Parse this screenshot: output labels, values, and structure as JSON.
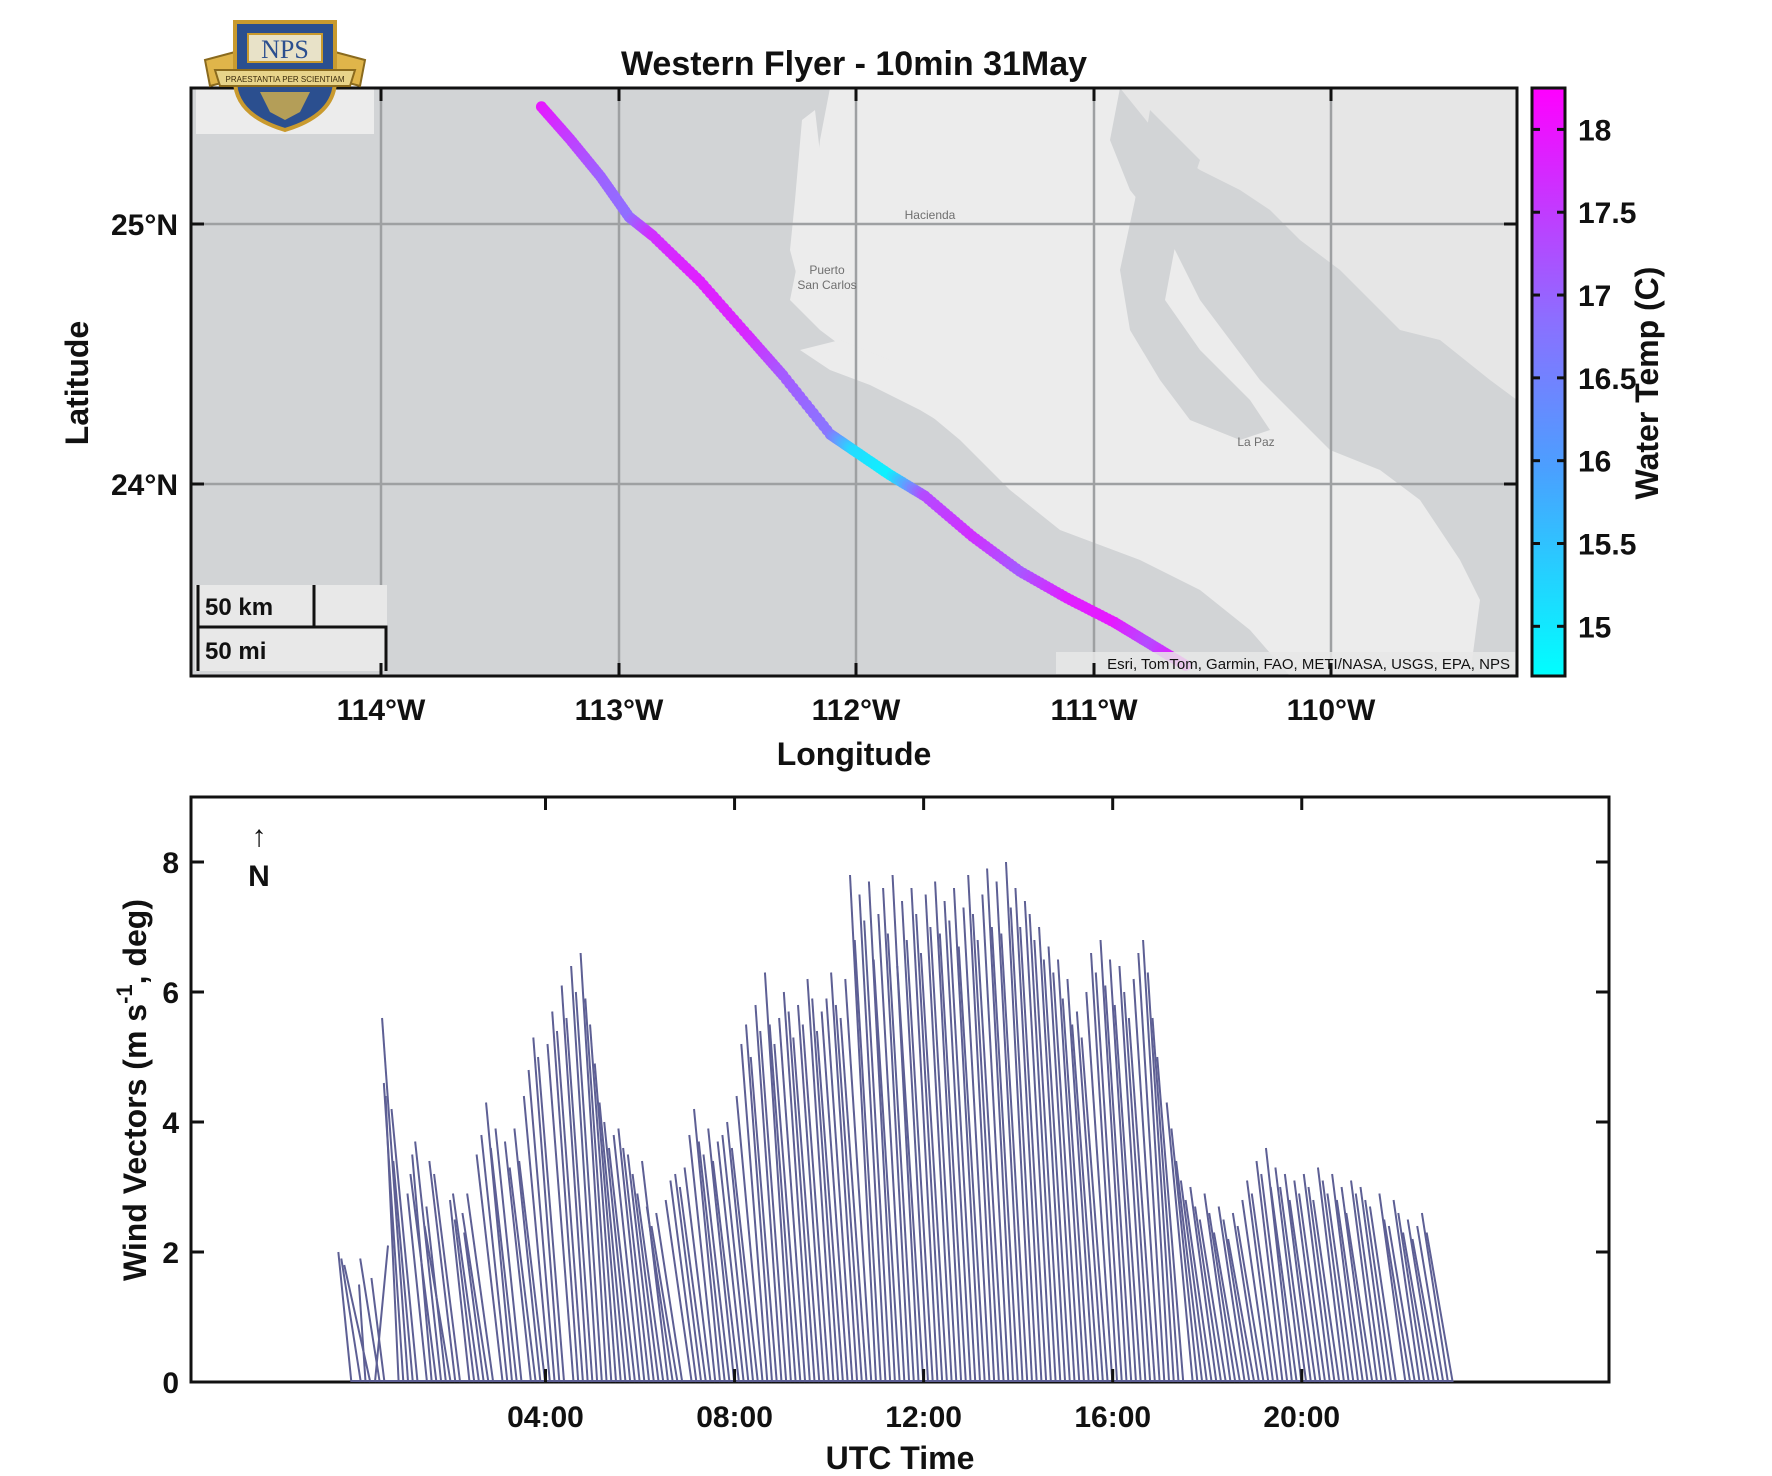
{
  "chart_data": [
    {
      "type": "scatter",
      "title": "Western Flyer - 10min 31May",
      "xlabel": "Longitude",
      "ylabel": "Latitude",
      "xlim": [
        -114.85,
        -109.25
      ],
      "ylim": [
        23.33,
        25.52
      ],
      "xticks": [
        {
          "value": -114,
          "label": "114°W"
        },
        {
          "value": -113,
          "label": "113°W"
        },
        {
          "value": -112,
          "label": "112°W"
        },
        {
          "value": -111,
          "label": "111°W"
        },
        {
          "value": -110,
          "label": "110°W"
        }
      ],
      "yticks": [
        {
          "value": 25,
          "label": "25°N"
        },
        {
          "value": 24,
          "label": "24°N"
        }
      ],
      "grid": true,
      "basemap": "light gray canvas",
      "basemap_attribution": "Esri, TomTom, Garmin, FAO, METI/NASA, USGS, EPA, NPS",
      "place_labels": [
        {
          "text": "Hacienda",
          "lon": -112.13,
          "lat": 25.03
        },
        {
          "text": "Puerto",
          "lon": -112.07,
          "lat": 24.77
        },
        {
          "text": "San Carlos",
          "lon": -112.07,
          "lat": 24.72
        },
        {
          "text": "La Paz",
          "lon": -110.31,
          "lat": 24.15
        }
      ],
      "scalebar": {
        "km_label": "50 km",
        "mi_label": "50 mi"
      },
      "logo": {
        "text": "NPS",
        "motto": "PRAESTANTIA PER SCIENTIAM"
      },
      "colorbar": {
        "label": "Water Temp (C)",
        "range": [
          14.7,
          18.25
        ],
        "ticks": [
          "18",
          "17.5",
          "17",
          "16.5",
          "16",
          "15.5",
          "15"
        ],
        "tick_values": [
          18,
          17.5,
          17,
          16.5,
          16,
          15.5,
          15
        ],
        "colormap": [
          "#00ffff",
          "#ff00ff"
        ]
      },
      "track": [
        {
          "lon": -113.37,
          "lat": 25.45,
          "temp": 17.9
        },
        {
          "lon": -113.25,
          "lat": 25.33,
          "temp": 17.4
        },
        {
          "lon": -113.12,
          "lat": 25.19,
          "temp": 16.9
        },
        {
          "lon": -113.0,
          "lat": 25.04,
          "temp": 16.7
        },
        {
          "lon": -112.9,
          "lat": 24.97,
          "temp": 17.6
        },
        {
          "lon": -112.7,
          "lat": 24.8,
          "temp": 17.8
        },
        {
          "lon": -112.5,
          "lat": 24.6,
          "temp": 17.7
        },
        {
          "lon": -112.35,
          "lat": 24.45,
          "temp": 17.0
        },
        {
          "lon": -112.15,
          "lat": 24.23,
          "temp": 16.6
        },
        {
          "lon": -112.05,
          "lat": 24.17,
          "temp": 15.2
        },
        {
          "lon": -111.9,
          "lat": 24.08,
          "temp": 14.9
        },
        {
          "lon": -111.75,
          "lat": 24.0,
          "temp": 17.2
        },
        {
          "lon": -111.55,
          "lat": 23.85,
          "temp": 17.6
        },
        {
          "lon": -111.35,
          "lat": 23.72,
          "temp": 17.0
        },
        {
          "lon": -111.15,
          "lat": 23.62,
          "temp": 17.8
        },
        {
          "lon": -110.95,
          "lat": 23.53,
          "temp": 17.9
        },
        {
          "lon": -110.8,
          "lat": 23.45,
          "temp": 17.2
        },
        {
          "lon": -110.65,
          "lat": 23.37,
          "temp": 18.1
        }
      ]
    },
    {
      "type": "line",
      "subtype": "wind vector stick plot",
      "xlabel": "UTC Time",
      "ylabel_parts": [
        "Wind Vectors (m s",
        "-1",
        ", deg)"
      ],
      "xlim_hours": [
        0,
        30
      ],
      "ylim": [
        0,
        9
      ],
      "xticks": [
        "04:00",
        "08:00",
        "12:00",
        "16:00",
        "20:00"
      ],
      "xtick_hours": [
        7.5,
        11.5,
        15.5,
        19.5,
        23.5
      ],
      "yticks": [
        "0",
        "2",
        "4",
        "6",
        "8"
      ],
      "ytick_values": [
        0,
        2,
        4,
        6,
        8
      ],
      "north_arrow": {
        "arrow": "↑",
        "label": "N"
      },
      "color": "#5d5f94",
      "vectors": [
        [
          2.8,
          2.0,
          -0.2
        ],
        [
          3.0,
          1.9,
          -0.3
        ],
        [
          3.1,
          1.5,
          -0.1
        ],
        [
          3.2,
          1.8,
          -0.4
        ],
        [
          3.3,
          2.1,
          0.2
        ],
        [
          3.4,
          1.9,
          -0.3
        ],
        [
          3.5,
          1.6,
          -0.2
        ],
        [
          3.8,
          4.4,
          -0.2
        ],
        [
          3.9,
          4.6,
          -0.3
        ],
        [
          4.0,
          5.6,
          -0.4
        ],
        [
          4.1,
          3.4,
          -0.3
        ],
        [
          4.2,
          4.2,
          -0.4
        ],
        [
          4.4,
          2.9,
          -0.3
        ],
        [
          4.5,
          3.5,
          -0.3
        ],
        [
          4.6,
          3.2,
          -0.4
        ],
        [
          4.7,
          3.7,
          -0.4
        ],
        [
          4.8,
          2.7,
          -0.3
        ],
        [
          4.9,
          2.4,
          -0.4
        ],
        [
          5.0,
          3.4,
          -0.4
        ],
        [
          5.1,
          3.2,
          -0.4
        ],
        [
          5.3,
          2.8,
          -0.3
        ],
        [
          5.4,
          2.5,
          -0.3
        ],
        [
          5.5,
          2.9,
          -0.4
        ],
        [
          5.6,
          2.3,
          -0.3
        ],
        [
          5.7,
          2.6,
          -0.4
        ],
        [
          5.8,
          2.9,
          -0.4
        ],
        [
          6.0,
          3.5,
          -0.4
        ],
        [
          6.1,
          3.8,
          -0.4
        ],
        [
          6.2,
          4.3,
          -0.4
        ],
        [
          6.3,
          3.6,
          -0.4
        ],
        [
          6.4,
          3.9,
          -0.4
        ],
        [
          6.6,
          3.7,
          -0.4
        ],
        [
          6.7,
          3.3,
          -0.4
        ],
        [
          6.8,
          3.9,
          -0.4
        ],
        [
          6.9,
          3.4,
          -0.4
        ],
        [
          7.0,
          4.4,
          -0.4
        ],
        [
          7.1,
          4.8,
          -0.4
        ],
        [
          7.2,
          5.3,
          -0.4
        ],
        [
          7.3,
          5.0,
          -0.4
        ],
        [
          7.5,
          5.2,
          -0.4
        ],
        [
          7.6,
          5.7,
          -0.4
        ],
        [
          7.7,
          5.4,
          -0.4
        ],
        [
          7.8,
          6.1,
          -0.4
        ],
        [
          7.9,
          5.6,
          -0.4
        ],
        [
          8.0,
          6.4,
          -0.4
        ],
        [
          8.1,
          6.0,
          -0.4
        ],
        [
          8.2,
          6.6,
          -0.4
        ],
        [
          8.3,
          5.9,
          -0.4
        ],
        [
          8.4,
          5.5,
          -0.4
        ],
        [
          8.5,
          4.9,
          -0.4
        ],
        [
          8.6,
          4.3,
          -0.4
        ],
        [
          8.7,
          4.0,
          -0.4
        ],
        [
          8.8,
          3.6,
          -0.4
        ],
        [
          8.9,
          3.8,
          -0.4
        ],
        [
          9.0,
          3.9,
          -0.4
        ],
        [
          9.1,
          3.6,
          -0.4
        ],
        [
          9.2,
          3.5,
          -0.4
        ],
        [
          9.3,
          3.2,
          -0.4
        ],
        [
          9.4,
          2.9,
          -0.4
        ],
        [
          9.5,
          3.4,
          -0.4
        ],
        [
          9.6,
          2.7,
          -0.4
        ],
        [
          9.7,
          2.4,
          -0.4
        ],
        [
          9.8,
          2.6,
          -0.4
        ],
        [
          10.0,
          2.8,
          -0.4
        ],
        [
          10.1,
          3.1,
          -0.4
        ],
        [
          10.2,
          3.2,
          -0.4
        ],
        [
          10.3,
          3.0,
          -0.4
        ],
        [
          10.4,
          3.3,
          -0.4
        ],
        [
          10.5,
          3.8,
          -0.4
        ],
        [
          10.6,
          4.2,
          -0.4
        ],
        [
          10.7,
          3.7,
          -0.4
        ],
        [
          10.8,
          3.5,
          -0.4
        ],
        [
          10.9,
          3.9,
          -0.4
        ],
        [
          11.0,
          3.4,
          -0.4
        ],
        [
          11.1,
          3.7,
          -0.4
        ],
        [
          11.2,
          3.8,
          -0.4
        ],
        [
          11.3,
          4.0,
          -0.4
        ],
        [
          11.4,
          3.6,
          -0.4
        ],
        [
          11.5,
          4.4,
          -0.4
        ],
        [
          11.6,
          5.2,
          -0.4
        ],
        [
          11.7,
          5.5,
          -0.4
        ],
        [
          11.8,
          5.0,
          -0.4
        ],
        [
          11.9,
          5.8,
          -0.4
        ],
        [
          12.0,
          5.4,
          -0.4
        ],
        [
          12.1,
          6.3,
          -0.4
        ],
        [
          12.2,
          5.5,
          -0.4
        ],
        [
          12.3,
          5.2,
          -0.4
        ],
        [
          12.4,
          5.6,
          -0.4
        ],
        [
          12.5,
          6.0,
          -0.4
        ],
        [
          12.6,
          5.7,
          -0.4
        ],
        [
          12.7,
          5.3,
          -0.4
        ],
        [
          12.8,
          5.8,
          -0.4
        ],
        [
          12.9,
          5.5,
          -0.4
        ],
        [
          13.0,
          6.2,
          -0.4
        ],
        [
          13.1,
          5.9,
          -0.4
        ],
        [
          13.2,
          5.4,
          -0.4
        ],
        [
          13.3,
          5.7,
          -0.4
        ],
        [
          13.4,
          5.9,
          -0.4
        ],
        [
          13.5,
          6.3,
          -0.4
        ],
        [
          13.6,
          5.8,
          -0.4
        ],
        [
          13.7,
          5.6,
          -0.4
        ],
        [
          13.8,
          6.2,
          -0.4
        ],
        [
          13.9,
          7.8,
          -0.4
        ],
        [
          14.0,
          6.8,
          -0.4
        ],
        [
          14.1,
          7.5,
          -0.4
        ],
        [
          14.2,
          7.1,
          -0.4
        ],
        [
          14.3,
          7.7,
          -0.4
        ],
        [
          14.4,
          6.5,
          -0.4
        ],
        [
          14.5,
          7.2,
          -0.4
        ],
        [
          14.6,
          7.6,
          -0.4
        ],
        [
          14.7,
          6.9,
          -0.4
        ],
        [
          14.8,
          7.8,
          -0.4
        ],
        [
          14.9,
          6.4,
          -0.4
        ],
        [
          15.0,
          7.4,
          -0.4
        ],
        [
          15.1,
          6.8,
          -0.4
        ],
        [
          15.2,
          7.6,
          -0.4
        ],
        [
          15.3,
          7.2,
          -0.4
        ],
        [
          15.4,
          6.6,
          -0.4
        ],
        [
          15.5,
          7.5,
          -0.4
        ],
        [
          15.6,
          7.0,
          -0.4
        ],
        [
          15.7,
          7.7,
          -0.4
        ],
        [
          15.8,
          6.9,
          -0.4
        ],
        [
          15.9,
          7.4,
          -0.4
        ],
        [
          16.0,
          7.1,
          -0.4
        ],
        [
          16.1,
          7.6,
          -0.4
        ],
        [
          16.2,
          6.7,
          -0.4
        ],
        [
          16.3,
          7.3,
          -0.4
        ],
        [
          16.4,
          7.8,
          -0.4
        ],
        [
          16.5,
          7.2,
          -0.4
        ],
        [
          16.6,
          6.8,
          -0.4
        ],
        [
          16.7,
          7.5,
          -0.4
        ],
        [
          16.8,
          7.9,
          -0.4
        ],
        [
          16.9,
          7.0,
          -0.4
        ],
        [
          17.0,
          7.7,
          -0.4
        ],
        [
          17.1,
          6.9,
          -0.4
        ],
        [
          17.2,
          8.0,
          -0.4
        ],
        [
          17.3,
          7.3,
          -0.4
        ],
        [
          17.4,
          7.6,
          -0.4
        ],
        [
          17.5,
          7.0,
          -0.4
        ],
        [
          17.6,
          7.4,
          -0.4
        ],
        [
          17.7,
          7.2,
          -0.4
        ],
        [
          17.8,
          6.8,
          -0.4
        ],
        [
          17.9,
          7.0,
          -0.4
        ],
        [
          18.0,
          6.5,
          -0.4
        ],
        [
          18.1,
          6.7,
          -0.4
        ],
        [
          18.2,
          6.3,
          -0.4
        ],
        [
          18.3,
          6.5,
          -0.4
        ],
        [
          18.4,
          5.9,
          -0.4
        ],
        [
          18.5,
          6.2,
          -0.4
        ],
        [
          18.6,
          5.5,
          -0.4
        ],
        [
          18.7,
          5.7,
          -0.4
        ],
        [
          18.8,
          5.3,
          -0.4
        ],
        [
          18.9,
          6.0,
          -0.4
        ],
        [
          19.0,
          6.6,
          -0.4
        ],
        [
          19.1,
          6.3,
          -0.4
        ],
        [
          19.2,
          6.8,
          -0.4
        ],
        [
          19.3,
          6.1,
          -0.4
        ],
        [
          19.4,
          6.5,
          -0.4
        ],
        [
          19.5,
          5.8,
          -0.4
        ],
        [
          19.6,
          6.4,
          -0.4
        ],
        [
          19.7,
          6.0,
          -0.4
        ],
        [
          19.8,
          5.6,
          -0.4
        ],
        [
          19.9,
          6.2,
          -0.4
        ],
        [
          20.0,
          6.6,
          -0.4
        ],
        [
          20.1,
          6.8,
          -0.4
        ],
        [
          20.2,
          6.3,
          -0.4
        ],
        [
          20.3,
          5.6,
          -0.4
        ],
        [
          20.4,
          5.0,
          -0.4
        ],
        [
          20.6,
          4.3,
          -0.4
        ],
        [
          20.7,
          3.9,
          -0.4
        ],
        [
          20.8,
          3.4,
          -0.4
        ],
        [
          20.9,
          3.1,
          -0.4
        ],
        [
          21.0,
          2.8,
          -0.4
        ],
        [
          21.1,
          3.0,
          -0.4
        ],
        [
          21.2,
          2.7,
          -0.4
        ],
        [
          21.3,
          2.5,
          -0.4
        ],
        [
          21.4,
          2.9,
          -0.4
        ],
        [
          21.5,
          2.6,
          -0.4
        ],
        [
          21.6,
          2.3,
          -0.4
        ],
        [
          21.7,
          2.7,
          -0.4
        ],
        [
          21.8,
          2.5,
          -0.4
        ],
        [
          21.9,
          2.2,
          -0.4
        ],
        [
          22.0,
          2.6,
          -0.4
        ],
        [
          22.1,
          2.4,
          -0.4
        ],
        [
          22.2,
          2.8,
          -0.4
        ],
        [
          22.3,
          3.1,
          -0.4
        ],
        [
          22.4,
          2.9,
          -0.4
        ],
        [
          22.5,
          3.4,
          -0.4
        ],
        [
          22.6,
          3.2,
          -0.4
        ],
        [
          22.7,
          3.6,
          -0.4
        ],
        [
          22.8,
          3.0,
          -0.4
        ],
        [
          22.9,
          3.3,
          -0.4
        ],
        [
          23.0,
          3.0,
          -0.4
        ],
        [
          23.1,
          3.2,
          -0.4
        ],
        [
          23.2,
          2.8,
          -0.4
        ],
        [
          23.3,
          3.1,
          -0.4
        ],
        [
          23.4,
          2.9,
          -0.4
        ],
        [
          23.5,
          3.2,
          -0.4
        ],
        [
          23.6,
          3.0,
          -0.4
        ],
        [
          23.7,
          2.8,
          -0.4
        ],
        [
          23.8,
          3.3,
          -0.4
        ],
        [
          23.9,
          3.1,
          -0.4
        ],
        [
          24.0,
          2.9,
          -0.4
        ],
        [
          24.1,
          3.2,
          -0.4
        ],
        [
          24.2,
          2.8,
          -0.4
        ],
        [
          24.3,
          3.0,
          -0.4
        ],
        [
          24.4,
          2.6,
          -0.4
        ],
        [
          24.5,
          3.1,
          -0.4
        ],
        [
          24.6,
          2.9,
          -0.4
        ],
        [
          24.7,
          3.0,
          -0.4
        ],
        [
          24.8,
          2.8,
          -0.4
        ],
        [
          24.9,
          2.7,
          -0.4
        ],
        [
          25.1,
          2.9,
          -0.4
        ],
        [
          25.2,
          2.5,
          -0.4
        ],
        [
          25.3,
          2.4,
          -0.4
        ],
        [
          25.4,
          2.8,
          -0.4
        ],
        [
          25.5,
          2.6,
          -0.4
        ],
        [
          25.6,
          2.3,
          -0.4
        ],
        [
          25.7,
          2.5,
          -0.4
        ],
        [
          25.8,
          2.2,
          -0.4
        ],
        [
          25.9,
          2.4,
          -0.4
        ],
        [
          26.0,
          2.6,
          -0.4
        ],
        [
          26.1,
          2.3,
          -0.4
        ]
      ]
    }
  ]
}
